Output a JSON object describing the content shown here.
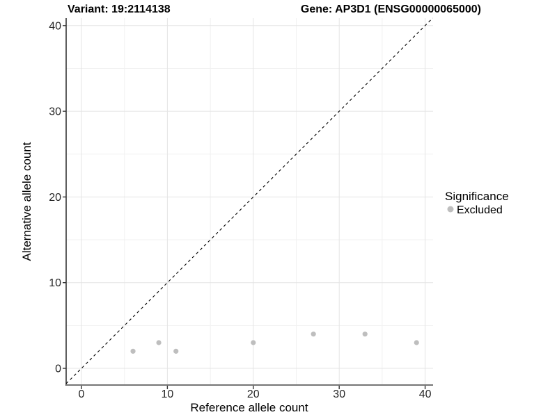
{
  "titles": {
    "variant": "Variant: 19:2114138",
    "gene": "Gene: AP3D1 (ENSG00000065000)"
  },
  "legend": {
    "title": "Significance",
    "entries": [
      {
        "label": "Excluded",
        "color": "#bebebe"
      }
    ]
  },
  "colors": {
    "point": "#bebebe",
    "major_grid": "#e4e4e4",
    "minor_grid": "#f1f1f1",
    "identity_line": "#000000",
    "axis_line_y": "#1a1a1a",
    "axis_line_x": "#757575",
    "tick_mark": "#333333"
  },
  "chart_data": {
    "type": "scatter",
    "title": "Variant: 19:2114138   Gene: AP3D1 (ENSG00000065000)",
    "xlabel": "Reference allele count",
    "ylabel": "Alternative allele count",
    "xlim": [
      -2,
      41
    ],
    "ylim": [
      -2,
      41
    ],
    "x_ticks": [
      0,
      10,
      20,
      30,
      40
    ],
    "y_ticks": [
      0,
      10,
      20,
      30,
      40
    ],
    "x_minor_ticks": [
      5,
      15,
      25,
      35
    ],
    "y_minor_ticks": [
      5,
      15,
      25,
      35
    ],
    "grid": "on",
    "legend_position": "right",
    "identity_line": {
      "slope": 1,
      "intercept": 0,
      "style": "dashed",
      "color": "#000000"
    },
    "series": [
      {
        "name": "Excluded",
        "color": "#bebebe",
        "points": [
          [
            6,
            2
          ],
          [
            9,
            3
          ],
          [
            11,
            2
          ],
          [
            20,
            3
          ],
          [
            27,
            4
          ],
          [
            33,
            4
          ],
          [
            39,
            3
          ]
        ]
      }
    ]
  }
}
